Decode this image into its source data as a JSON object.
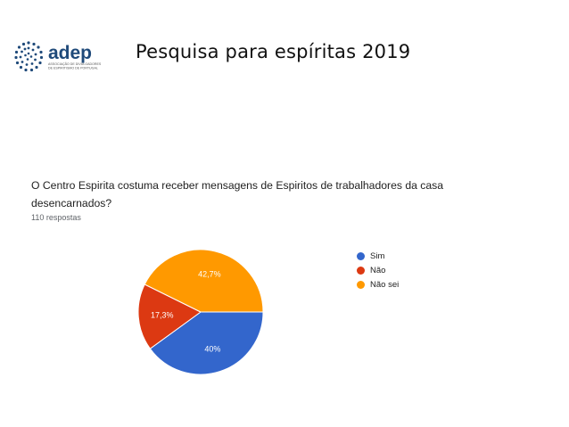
{
  "header": {
    "logo_text": "adep",
    "logo_subtext_1": "ASSOCIAÇÃO DE DIVULGADORES",
    "logo_subtext_2": "DE ESPIRITISMO DE PORTUGAL",
    "title": "Pesquisa para espíritas  2019"
  },
  "survey": {
    "question": "O Centro Espirita costuma receber mensagens de Espiritos de trabalhadores da casa desencarnados?",
    "responses": "110 respostas"
  },
  "colors": {
    "sim": "#3366cc",
    "nao": "#dc3912",
    "nao_sei": "#ff9900"
  },
  "chart_data": {
    "type": "pie",
    "title": "",
    "slices": [
      {
        "label": "Sim",
        "value": 40,
        "display": "40%",
        "color": "#3366cc"
      },
      {
        "label": "Não",
        "value": 17.3,
        "display": "17,3%",
        "color": "#dc3912"
      },
      {
        "label": "Não sei",
        "value": 42.7,
        "display": "42,7%",
        "color": "#ff9900"
      }
    ],
    "legend_position": "right"
  }
}
